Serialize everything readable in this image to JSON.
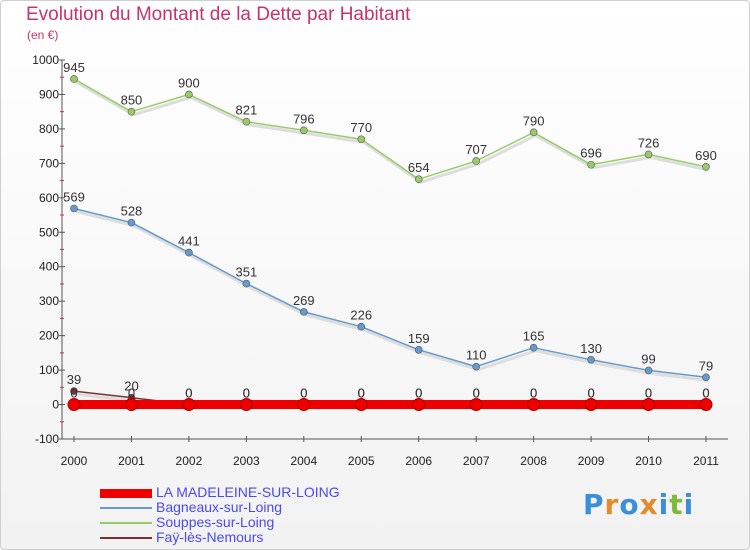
{
  "header": {
    "title": "Evolution du Montant de la Dette par Habitant",
    "subtitle": "(en €)"
  },
  "chart_data": {
    "type": "line",
    "title": "Evolution du Montant de la Dette par Habitant",
    "subtitle": "(en €)",
    "x": [
      "2000",
      "2001",
      "2002",
      "2003",
      "2004",
      "2005",
      "2006",
      "2007",
      "2008",
      "2009",
      "2010",
      "2011"
    ],
    "ylim": [
      -100,
      1000
    ],
    "yticks": [
      "-100",
      "0",
      "100",
      "200",
      "300",
      "400",
      "500",
      "600",
      "700",
      "800",
      "900",
      "1000"
    ],
    "grid": false,
    "legend_position": "bottom-left",
    "series": [
      {
        "name": "Souppes-sur-Loing",
        "color": "#99cc66",
        "values": [
          945,
          850,
          900,
          821,
          796,
          770,
          654,
          707,
          790,
          696,
          726,
          690
        ],
        "labels": [
          "945",
          "850",
          "900",
          "821",
          "796",
          "770",
          "654",
          "707",
          "790",
          "696",
          "726",
          "690"
        ]
      },
      {
        "name": "Bagneaux-sur-Loing",
        "color": "#6699cc",
        "values": [
          569,
          528,
          441,
          351,
          269,
          226,
          159,
          110,
          165,
          130,
          99,
          79
        ],
        "labels": [
          "569",
          "528",
          "441",
          "351",
          "269",
          "226",
          "159",
          "110",
          "165",
          "130",
          "99",
          "79"
        ]
      },
      {
        "name": "Faÿ-lès-Nemours",
        "color": "#773333",
        "values": [
          39,
          20,
          0,
          0,
          0,
          0,
          0,
          0,
          0,
          0,
          0,
          0
        ],
        "labels": [
          "39",
          "20",
          "0",
          "0",
          "0",
          "0",
          "0",
          "0",
          "0",
          "0",
          "0",
          "0"
        ]
      },
      {
        "name": "LA MADELEINE-SUR-LOING",
        "color": "#ee0000",
        "values": [
          0,
          0,
          0,
          0,
          0,
          0,
          0,
          0,
          0,
          0,
          0,
          0
        ],
        "labels": [
          "0",
          "0",
          "0",
          "0",
          "0",
          "0",
          "0",
          "0",
          "0",
          "0",
          "0",
          "0"
        ]
      }
    ]
  },
  "legend": {
    "items": [
      {
        "label": "LA MADELEINE-SUR-LOING",
        "color": "#ee0000"
      },
      {
        "label": "Bagneaux-sur-Loing",
        "color": "#6699cc"
      },
      {
        "label": "Souppes-sur-Loing",
        "color": "#99cc66"
      },
      {
        "label": "Faÿ-lès-Nemours",
        "color": "#773333"
      }
    ]
  },
  "logo": {
    "letters": [
      "P",
      "r",
      "o",
      "x",
      "i",
      "t",
      "i"
    ],
    "colors": [
      "#3a8fd8",
      "#e38a2a",
      "#3a8fd8",
      "#e38a2a",
      "#3a8fd8",
      "#7fb83a",
      "#3a8fd8"
    ]
  }
}
